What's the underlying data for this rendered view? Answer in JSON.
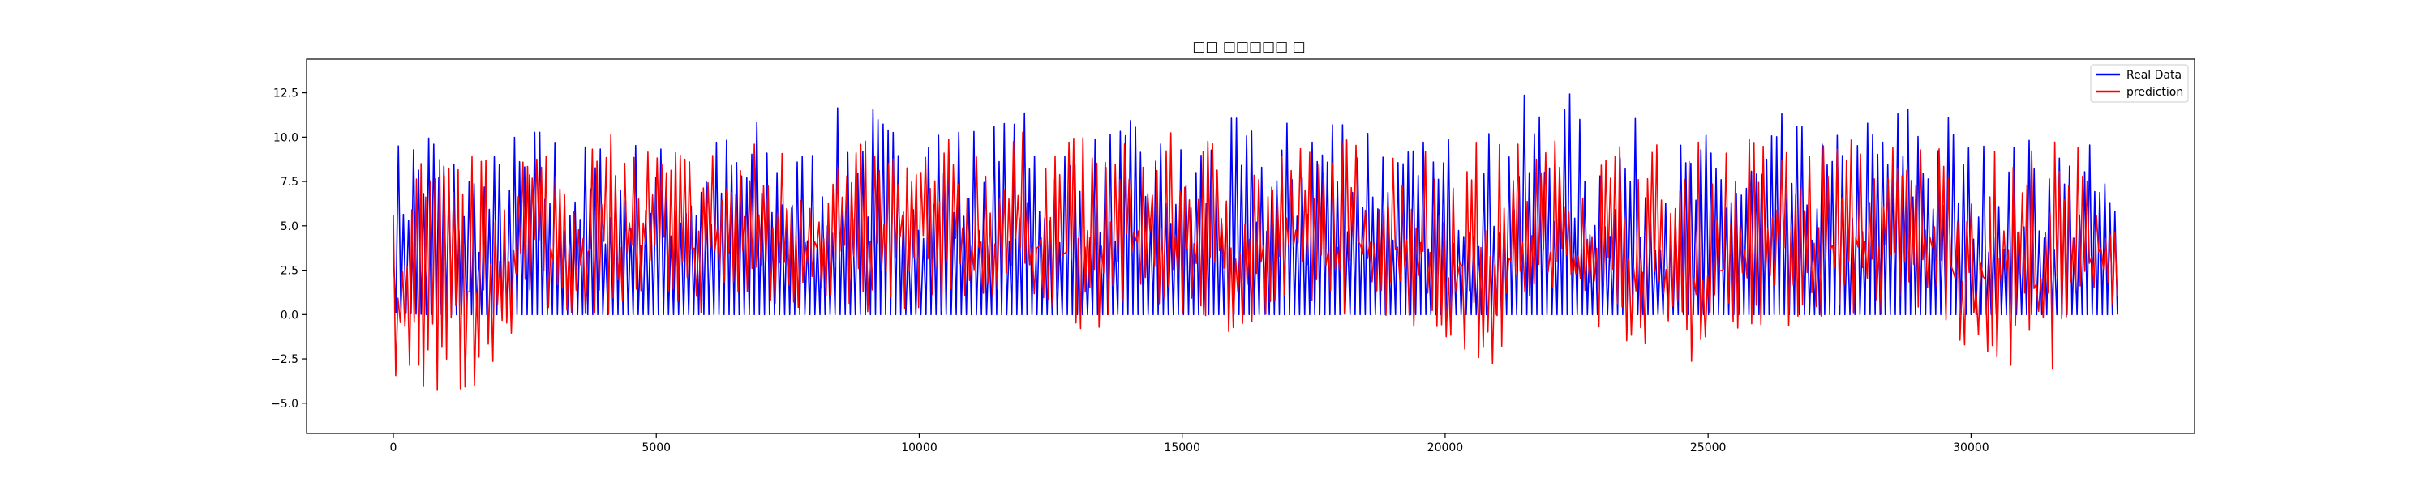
{
  "chart_data": {
    "type": "line",
    "title": "□□ □□□□□ □",
    "xlabel": "",
    "ylabel": "",
    "xlim": [
      -1650,
      34250
    ],
    "ylim": [
      -6.7,
      14.4
    ],
    "x_ticks": [
      0,
      5000,
      10000,
      15000,
      20000,
      25000,
      30000
    ],
    "x_tick_labels": [
      "0",
      "5000",
      "10000",
      "15000",
      "20000",
      "25000",
      "30000"
    ],
    "y_ticks": [
      -5.0,
      -2.5,
      0.0,
      2.5,
      5.0,
      7.5,
      10.0,
      12.5
    ],
    "y_tick_labels": [
      "−5.0",
      "−2.5",
      "0.0",
      "2.5",
      "5.0",
      "7.5",
      "10.0",
      "12.5"
    ],
    "grid": false,
    "legend_position": "top-right",
    "series": [
      {
        "name": "Real Data",
        "color": "#0000ff",
        "x": [
          0,
          600,
          1200,
          1800,
          2400,
          3000,
          3600,
          4200,
          4800,
          5400,
          6000,
          6600,
          7200,
          7800,
          8400,
          9000,
          9600,
          10200,
          10800,
          11400,
          12000,
          12600,
          13200,
          13800,
          14400,
          15000,
          15600,
          16200,
          16800,
          17400,
          18000,
          18600,
          19200,
          19800,
          20400,
          21000,
          21600,
          22200,
          22800,
          23400,
          24000,
          24600,
          25200,
          25800,
          26400,
          27000,
          27600,
          28200,
          28800,
          29400,
          30000,
          30600,
          31200,
          31800,
          32400,
          32800
        ],
        "peaks": [
          9.6,
          12.2,
          9.4,
          9.0,
          10.8,
          11.0,
          9.8,
          10.4,
          10.0,
          9.6,
          10.0,
          11.4,
          11.2,
          9.6,
          11.6,
          12.6,
          10.6,
          12.6,
          11.0,
          11.2,
          11.6,
          10.6,
          10.2,
          11.2,
          10.6,
          10.0,
          11.4,
          11.0,
          10.6,
          12.4,
          12.8,
          12.4,
          9.6,
          10.2,
          11.0,
          10.4,
          12.8,
          13.6,
          10.2,
          11.6,
          10.2,
          10.0,
          10.6,
          9.8,
          11.4,
          10.4,
          10.4,
          11.8,
          12.6,
          12.6,
          10.0,
          10.0,
          10.2,
          10.0,
          9.8,
          6.5
        ],
        "troughs": [
          0.1,
          0.0,
          0.0,
          0.0,
          0.0,
          0.0,
          0.0,
          0.0,
          0.0,
          0.0,
          0.0,
          0.0,
          0.0,
          0.0,
          0.0,
          0.0,
          0.0,
          0.0,
          0.0,
          0.0,
          0.0,
          0.0,
          0.0,
          0.0,
          0.0,
          0.0,
          0.0,
          0.0,
          0.0,
          0.0,
          0.0,
          0.0,
          0.0,
          0.0,
          0.0,
          0.0,
          0.0,
          0.0,
          0.0,
          0.0,
          0.0,
          0.0,
          0.0,
          0.0,
          0.0,
          0.0,
          0.0,
          0.0,
          0.0,
          0.0,
          0.0,
          0.0,
          0.0,
          0.0,
          0.0,
          0.0
        ]
      },
      {
        "name": "prediction",
        "color": "#ff0000",
        "x": [
          0,
          600,
          1200,
          1800,
          2400,
          3000,
          3600,
          4200,
          4800,
          5400,
          6000,
          6600,
          7200,
          7800,
          8400,
          9000,
          9600,
          10200,
          10800,
          11400,
          12000,
          12600,
          13200,
          13800,
          14400,
          15000,
          15600,
          16200,
          16800,
          17400,
          18000,
          18600,
          19200,
          19800,
          20400,
          21000,
          21600,
          22200,
          22800,
          23400,
          24000,
          24600,
          25200,
          25800,
          26400,
          27000,
          27600,
          28200,
          28800,
          29400,
          30000,
          30600,
          31200,
          31800,
          32400,
          32800
        ],
        "peaks": [
          9.0,
          9.4,
          9.6,
          9.0,
          10.6,
          10.2,
          10.2,
          10.2,
          10.0,
          10.0,
          9.8,
          10.0,
          10.0,
          9.6,
          9.8,
          9.8,
          10.0,
          9.8,
          10.2,
          10.6,
          10.4,
          10.6,
          10.0,
          10.0,
          10.4,
          10.2,
          10.4,
          10.0,
          10.0,
          9.8,
          10.2,
          10.0,
          10.2,
          10.0,
          10.4,
          9.8,
          10.2,
          10.0,
          10.0,
          10.2,
          10.0,
          9.8,
          10.0,
          10.4,
          10.0,
          10.0,
          10.2,
          10.0,
          10.0,
          10.2,
          9.8,
          9.6,
          10.2,
          10.0,
          9.6,
          5.0
        ],
        "troughs": [
          -4.0,
          -4.4,
          -5.8,
          -3.2,
          -0.6,
          -0.4,
          -0.2,
          0.0,
          0.0,
          0.0,
          0.0,
          0.2,
          0.1,
          0.2,
          0.2,
          0.0,
          0.2,
          0.2,
          0.0,
          -0.4,
          -0.2,
          -0.2,
          -1.2,
          0.0,
          0.2,
          0.0,
          -0.2,
          -1.8,
          -1.2,
          0.0,
          0.0,
          0.0,
          -0.2,
          -2.2,
          -2.6,
          -3.0,
          -0.2,
          0.0,
          -0.6,
          -1.6,
          -2.0,
          -2.8,
          -2.2,
          -0.6,
          -1.0,
          -0.4,
          0.0,
          -0.4,
          -0.6,
          0.0,
          -3.8,
          -3.2,
          -2.8,
          -3.4,
          -0.8,
          1.0
        ]
      }
    ]
  }
}
